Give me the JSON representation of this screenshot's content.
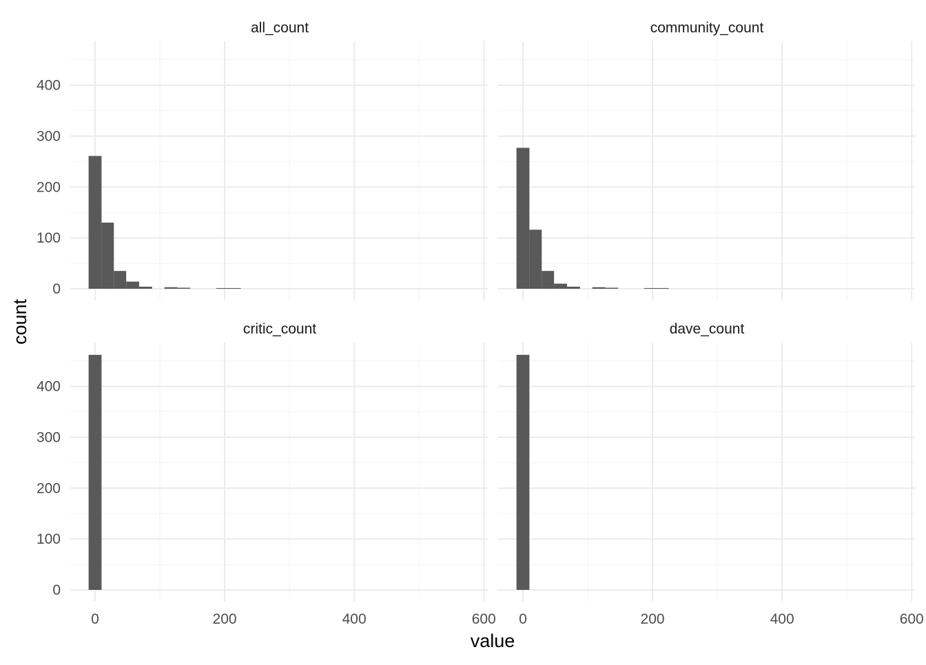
{
  "chart_data": {
    "type": "bar",
    "subtype": "faceted-histogram",
    "xlabel": "value",
    "ylabel": "count",
    "xlim": [
      -12,
      602
    ],
    "ylim": [
      0,
      480
    ],
    "x_ticks": [
      0,
      200,
      400,
      600
    ],
    "y_ticks": [
      0,
      100,
      200,
      300,
      400
    ],
    "grid": true,
    "bar_color": "#595959",
    "facets": [
      {
        "title": "all_count",
        "bins": [
          {
            "x0": -10,
            "x1": 10,
            "count": 261
          },
          {
            "x0": 10,
            "x1": 29,
            "count": 130
          },
          {
            "x0": 29,
            "x1": 48,
            "count": 35
          },
          {
            "x0": 48,
            "x1": 68,
            "count": 14
          },
          {
            "x0": 68,
            "x1": 88,
            "count": 4
          },
          {
            "x0": 107,
            "x1": 127,
            "count": 3
          },
          {
            "x0": 127,
            "x1": 147,
            "count": 2
          },
          {
            "x0": 187,
            "x1": 225,
            "count": 1
          }
        ]
      },
      {
        "title": "community_count",
        "bins": [
          {
            "x0": -10,
            "x1": 10,
            "count": 277
          },
          {
            "x0": 10,
            "x1": 29,
            "count": 116
          },
          {
            "x0": 29,
            "x1": 48,
            "count": 35
          },
          {
            "x0": 48,
            "x1": 68,
            "count": 10
          },
          {
            "x0": 68,
            "x1": 88,
            "count": 4
          },
          {
            "x0": 107,
            "x1": 127,
            "count": 3
          },
          {
            "x0": 127,
            "x1": 147,
            "count": 2
          },
          {
            "x0": 187,
            "x1": 225,
            "count": 1
          }
        ]
      },
      {
        "title": "critic_count",
        "bins": [
          {
            "x0": -10,
            "x1": 10,
            "count": 462
          }
        ]
      },
      {
        "title": "dave_count",
        "bins": [
          {
            "x0": -10,
            "x1": 10,
            "count": 462
          }
        ]
      }
    ]
  }
}
